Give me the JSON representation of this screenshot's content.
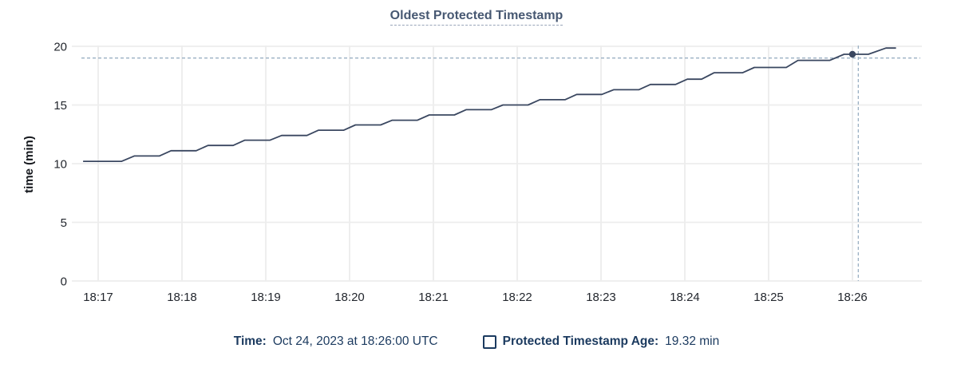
{
  "title": "Oldest Protected Timestamp",
  "legend": {
    "time_label": "Time:",
    "time_value": "Oct 24, 2023 at 18:26:00 UTC",
    "series_label": "Protected Timestamp Age:",
    "series_value": "19.32 min"
  },
  "colors": {
    "line": "#3a4760",
    "point": "#3a4760",
    "crosshair": "#9bb0c3",
    "grid": "#ededed",
    "title": "#475872",
    "legend_text": "#1b3a5f",
    "tick_text": "#23272e"
  },
  "chart_data": {
    "type": "line",
    "title": "Oldest Protected Timestamp",
    "xlabel": "",
    "ylabel": "time (min)",
    "x_tick_labels": [
      "18:17",
      "18:18",
      "18:19",
      "18:20",
      "18:21",
      "18:22",
      "18:23",
      "18:24",
      "18:25",
      "18:26"
    ],
    "x_tick_positions_min": [
      0,
      1,
      2,
      3,
      4,
      5,
      6,
      7,
      8,
      9
    ],
    "y_ticks": [
      0,
      5,
      10,
      15,
      20
    ],
    "ylim": [
      0,
      20
    ],
    "x_domain_min": [
      -0.31,
      9.83
    ],
    "grid": true,
    "legend_position": "bottom",
    "series": [
      {
        "name": "Protected Timestamp Age",
        "unit": "min",
        "points_minutes_after_1817_vs_min": [
          [
            -0.18,
            10.2
          ],
          [
            0.28,
            10.2
          ],
          [
            0.43,
            10.65
          ],
          [
            0.73,
            10.65
          ],
          [
            0.87,
            11.1
          ],
          [
            1.17,
            11.1
          ],
          [
            1.31,
            11.55
          ],
          [
            1.61,
            11.55
          ],
          [
            1.75,
            12.0
          ],
          [
            2.05,
            12.0
          ],
          [
            2.19,
            12.4
          ],
          [
            2.49,
            12.4
          ],
          [
            2.63,
            12.85
          ],
          [
            2.93,
            12.85
          ],
          [
            3.07,
            13.3
          ],
          [
            3.37,
            13.3
          ],
          [
            3.51,
            13.7
          ],
          [
            3.81,
            13.7
          ],
          [
            3.95,
            14.15
          ],
          [
            4.25,
            14.15
          ],
          [
            4.39,
            14.6
          ],
          [
            4.69,
            14.6
          ],
          [
            4.83,
            15.0
          ],
          [
            5.13,
            15.0
          ],
          [
            5.27,
            15.45
          ],
          [
            5.57,
            15.45
          ],
          [
            5.71,
            15.9
          ],
          [
            6.01,
            15.9
          ],
          [
            6.15,
            16.3
          ],
          [
            6.45,
            16.3
          ],
          [
            6.59,
            16.75
          ],
          [
            6.89,
            16.75
          ],
          [
            7.03,
            17.2
          ],
          [
            7.2,
            17.2
          ],
          [
            7.35,
            17.75
          ],
          [
            7.69,
            17.75
          ],
          [
            7.83,
            18.2
          ],
          [
            8.21,
            18.2
          ],
          [
            8.35,
            18.8
          ],
          [
            8.73,
            18.8
          ],
          [
            8.9,
            19.32
          ],
          [
            9.19,
            19.32
          ],
          [
            9.4,
            19.85
          ],
          [
            9.52,
            19.85
          ]
        ]
      }
    ],
    "highlight_point": {
      "x_min": 9.0,
      "x_label": "18:26:00",
      "value": 19.32
    },
    "crosshair": {
      "x_min": 9.07,
      "y_value": 19.0
    }
  }
}
